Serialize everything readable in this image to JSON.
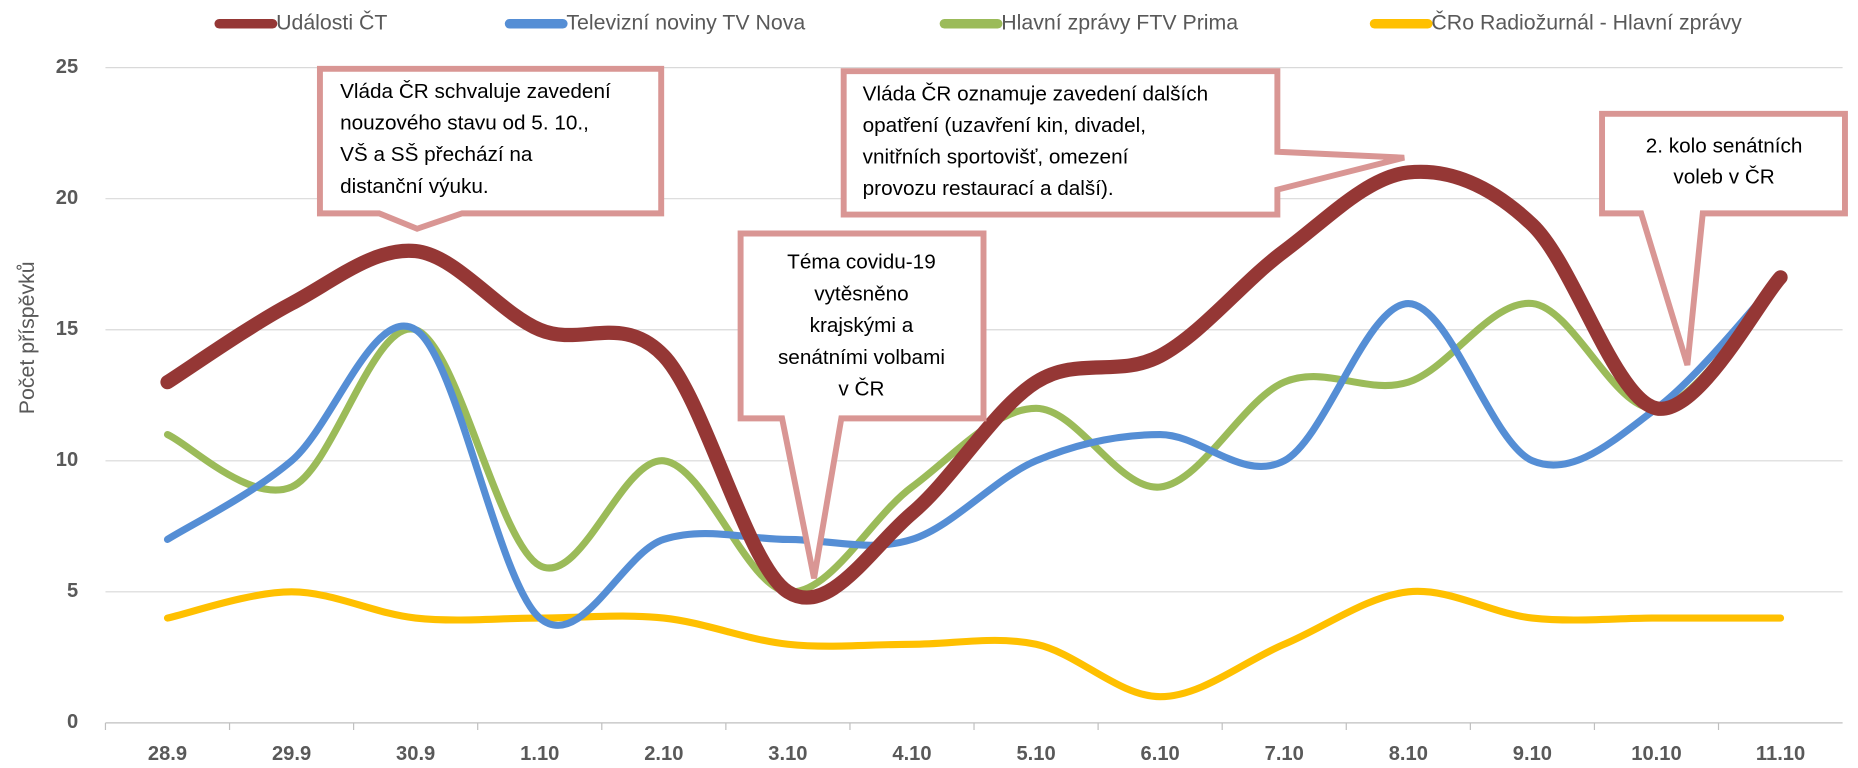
{
  "chart_data": {
    "type": "line",
    "y_label": "Počet příspěvků",
    "categories": [
      "28.9",
      "29.9",
      "30.9",
      "1.10",
      "2.10",
      "3.10",
      "4.10",
      "5.10",
      "6.10",
      "7.10",
      "8.10",
      "9.10",
      "10.10",
      "11.10"
    ],
    "series": [
      {
        "name": "Události ČT",
        "color": "#953735",
        "values": [
          13,
          16,
          18,
          15,
          14,
          5,
          8,
          13,
          14,
          18,
          21,
          19,
          12,
          17
        ]
      },
      {
        "name": "Televizní noviny TV Nova",
        "color": "#558ed5",
        "values": [
          7,
          10,
          15,
          4,
          7,
          7,
          7,
          10,
          11,
          10,
          16,
          10,
          12,
          17
        ]
      },
      {
        "name": "Hlavní zprávy FTV Prima",
        "color": "#9bbb59",
        "values": [
          11,
          9,
          15,
          6,
          10,
          5,
          9,
          12,
          9,
          13,
          13,
          16,
          12,
          17
        ]
      },
      {
        "name": "ČRo Radiožurnál - Hlavní zprávy",
        "color": "#ffc000",
        "values": [
          4,
          5,
          4,
          4,
          4,
          3,
          3,
          3,
          1,
          3,
          5,
          4,
          4,
          4
        ]
      }
    ],
    "ylim": [
      0,
      25
    ],
    "yticks": [
      0,
      5,
      10,
      15,
      20,
      25
    ],
    "grid": true,
    "legend": "top",
    "annotations": [
      {
        "lines": [
          "Vláda ČR schvaluje zavedení",
          "nouzového stavu od 5. 10.,",
          "VŠ a SŠ přechází na",
          "distanční výuku."
        ]
      },
      {
        "lines": [
          "Vláda ČR oznamuje zavedení dalších",
          "opatření (uzavření kin, divadel,",
          "vnitřních sportovišť, omezení",
          "provozu restaurací a další)."
        ]
      },
      {
        "lines": [
          "Téma covidu-19",
          "vytěsněno",
          "krajskými a",
          "senátními volbami",
          "v ČR"
        ]
      },
      {
        "lines": [
          "2. kolo senátních",
          "voleb v ČR"
        ]
      }
    ]
  }
}
